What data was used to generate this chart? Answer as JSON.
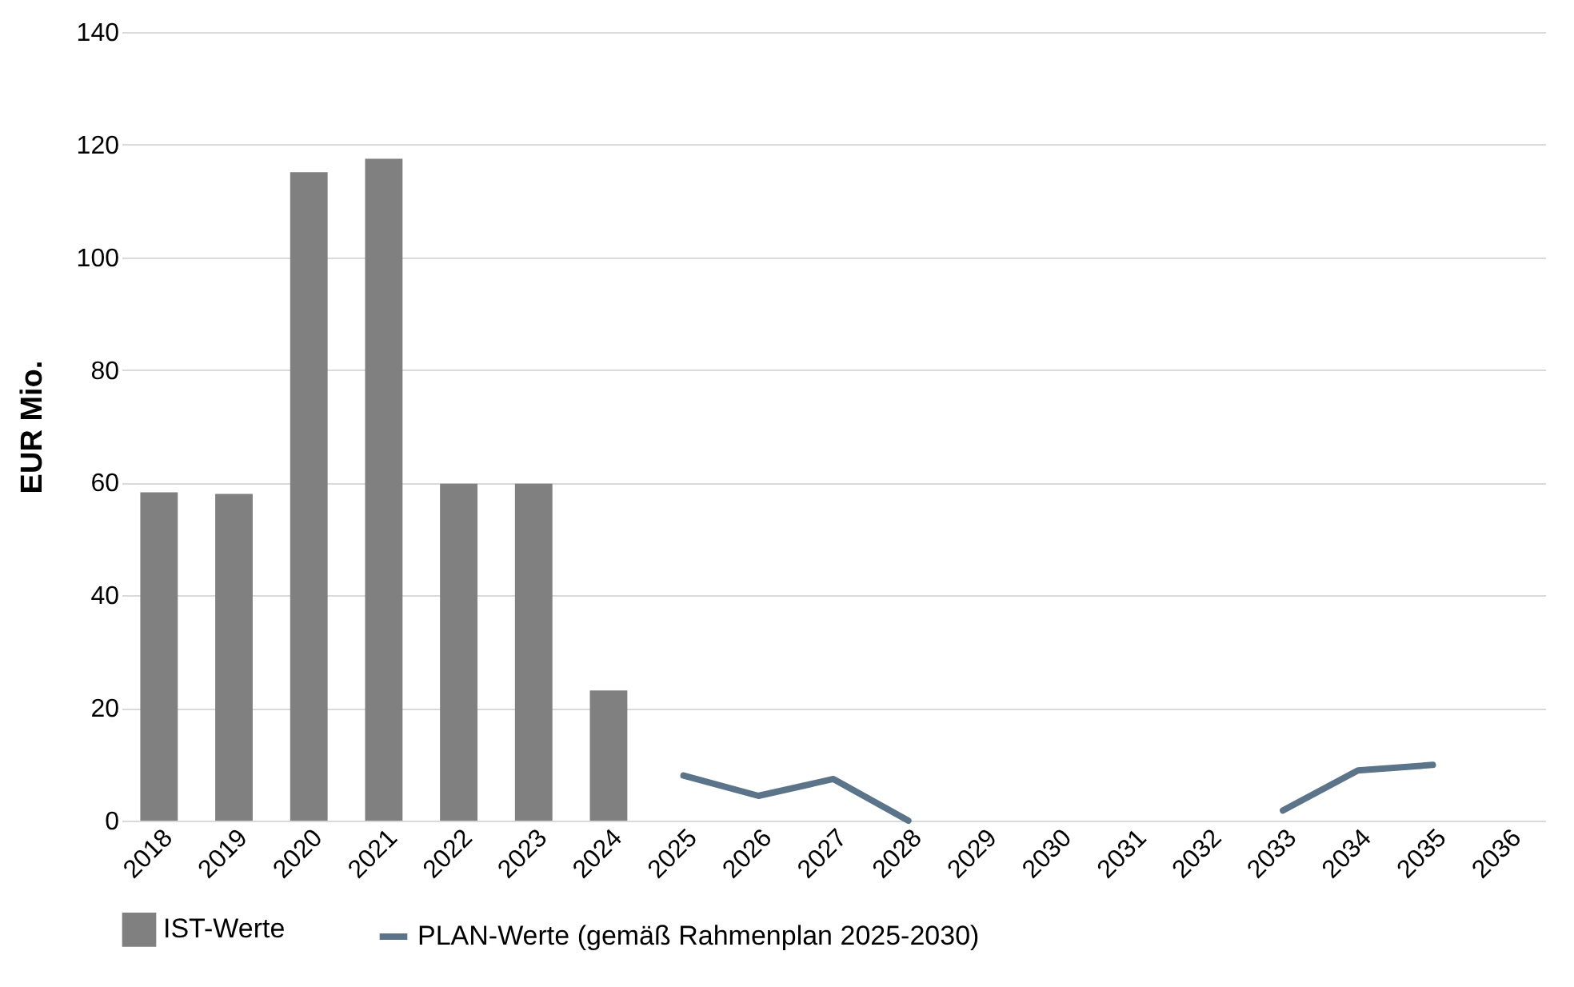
{
  "chart_data": {
    "type": "bar",
    "ylabel": "EUR Mio.",
    "categories": [
      "2018",
      "2019",
      "2020",
      "2021",
      "2022",
      "2023",
      "2024",
      "2025",
      "2026",
      "2027",
      "2028",
      "2029",
      "2030",
      "2031",
      "2032",
      "2033",
      "2034",
      "2035",
      "2036"
    ],
    "series": [
      {
        "name": "IST-Werte",
        "color": "#808080",
        "values": [
          58.3,
          58,
          115.1,
          117.5,
          59.8,
          59.8,
          23.1,
          null,
          null,
          null,
          null,
          null,
          null,
          null,
          null,
          null,
          null,
          null,
          null
        ]
      },
      {
        "name": "PLAN-Werte (gemäß Rahmenplan 2025-2030)",
        "type": "line",
        "color": "#5b7489",
        "values": [
          null,
          null,
          null,
          null,
          null,
          null,
          null,
          8,
          4.4,
          7.4,
          0,
          null,
          null,
          null,
          null,
          1.8,
          8.9,
          9.9,
          null
        ]
      }
    ],
    "ylim": [
      0,
      140
    ],
    "yticks": [
      0,
      20,
      40,
      60,
      80,
      100,
      120,
      140
    ],
    "grid": "y",
    "legend": "bottom",
    "marker": "none",
    "line_style": "solid"
  }
}
